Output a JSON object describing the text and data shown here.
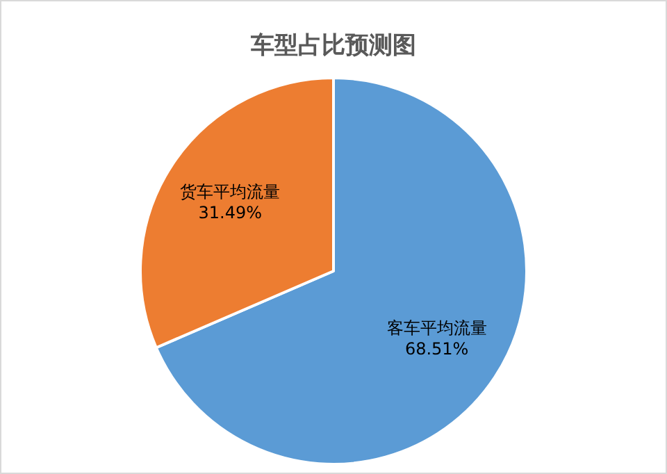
{
  "chart_data": {
    "type": "pie",
    "title": "车型占比预测图",
    "categories": [
      "客车平均流量",
      "货车平均流量"
    ],
    "values": [
      68.51,
      31.49
    ],
    "value_labels": [
      "68.51%",
      "31.49%"
    ],
    "colors": [
      "#5b9bd5",
      "#ed7d31"
    ],
    "legend": false
  }
}
